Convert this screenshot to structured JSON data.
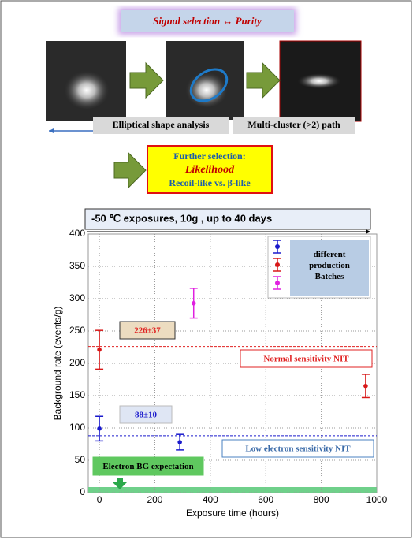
{
  "header": {
    "title": "Signal selection ↔ Purity"
  },
  "steps": {
    "label1": "Elliptical shape analysis",
    "label2": "Multi-cluster (>2)  path",
    "further": [
      "Further selection:",
      "Likelihood",
      "Recoil-like vs. β-like"
    ]
  },
  "chart_data": {
    "type": "scatter",
    "title": "-50 ℃ exposures, 10g , up to 40 days",
    "x_label": "Exposure time (hours)",
    "y_label": "Background rate (events/g)",
    "xlim": [
      -40,
      1000
    ],
    "ylim": [
      0,
      400
    ],
    "xticks": [
      0,
      200,
      400,
      600,
      800,
      1000
    ],
    "yticks": [
      0,
      50,
      100,
      150,
      200,
      250,
      300,
      350,
      400
    ],
    "grid": true,
    "series": [
      {
        "color": "#1a1acc",
        "x": [
          0,
          290
        ],
        "values": [
          99,
          78
        ],
        "errors": [
          19,
          12
        ]
      },
      {
        "color": "#d81818",
        "x": [
          0,
          960
        ],
        "values": [
          221,
          165
        ],
        "errors": [
          30,
          18
        ]
      },
      {
        "color": "#e020e0",
        "x": [
          340
        ],
        "values": [
          293
        ],
        "errors": [
          23
        ]
      }
    ],
    "legend_text": "different production Batches",
    "hlines": [
      {
        "value": 226,
        "color": "#e02020",
        "label": "226±37"
      },
      {
        "value": 88,
        "color": "#1a1acc",
        "label": "88±10"
      }
    ],
    "annotations": [
      "Normal sensitivity NIT",
      "Low electron sensitivity NIT",
      "Electron BG expectation"
    ]
  }
}
